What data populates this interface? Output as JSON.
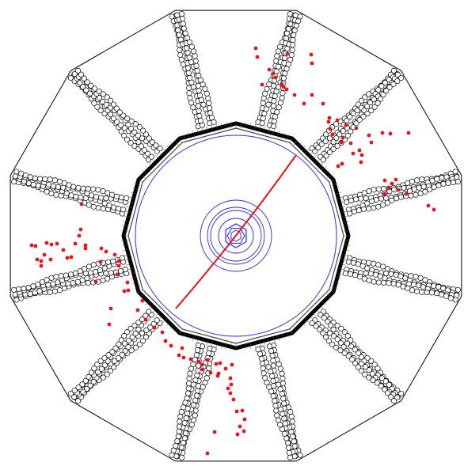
{
  "colors": {
    "background": "#ffffff",
    "detector_outline": "#000000",
    "tube_fill": "#ffffff",
    "inner_tracker": "#2a2af5",
    "hits": "#e8141a",
    "track": "#e8141a"
  },
  "detector": {
    "sectors": 12,
    "chamber_type": "tubes"
  },
  "hits": {
    "count": 115
  }
}
